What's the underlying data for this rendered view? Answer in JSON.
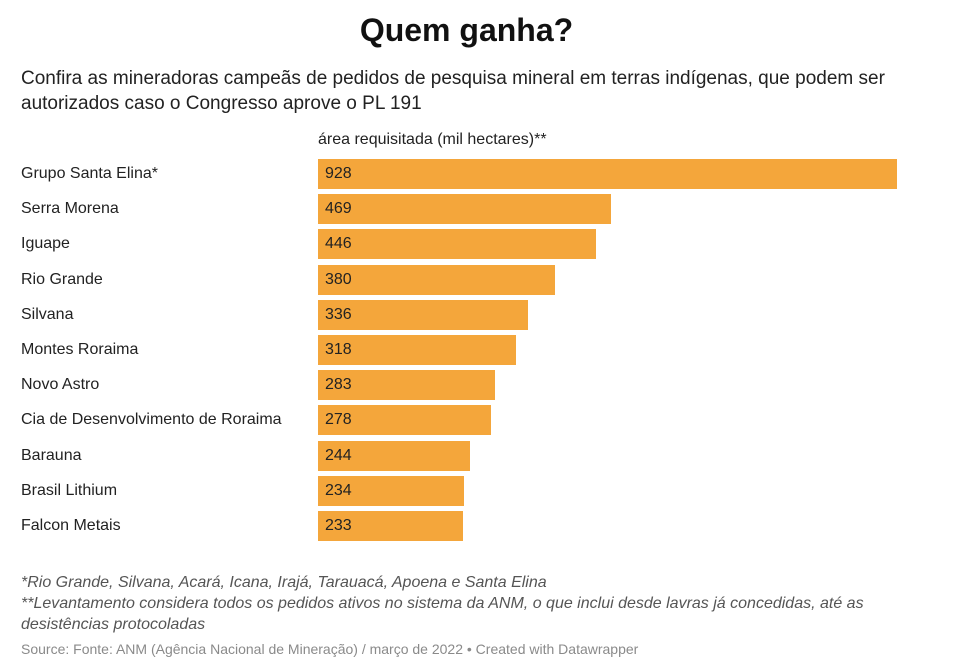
{
  "title": "Quem ganha?",
  "subtitle": "Confira as mineradoras campeãs de pedidos de pesquisa mineral em terras indígenas, que podem ser autorizados caso o Congresso aprove o PL 191",
  "chart_data": {
    "type": "bar",
    "orientation": "horizontal",
    "column_header": "área requisitada (mil hectares)**",
    "categories": [
      "Grupo Santa Elina*",
      "Serra Morena",
      "Iguape",
      "Rio Grande",
      "Silvana",
      "Montes Roraima",
      "Novo Astro",
      "Cia de Desenvolvimento de Roraima",
      "Barauna",
      "Brasil Lithium",
      "Falcon Metais"
    ],
    "values": [
      928,
      469,
      446,
      380,
      336,
      318,
      283,
      278,
      244,
      234,
      233
    ],
    "xlim": [
      0,
      928
    ],
    "data_labels": "inside-left",
    "grid": false,
    "legend": "none",
    "bar_color": "#f4a63b"
  },
  "notes": [
    "*Rio Grande, Silvana, Acará, Icana, Irajá, Tarauacá, Apoena e Santa Elina",
    "**Levantamento considera todos os pedidos ativos no sistema da ANM, o que inclui desde lavras já concedidas, até as desistências protocoladas"
  ],
  "source": "Source: Fonte: ANM (Agência Nacional de Mineração) / março de 2022 • Created with Datawrapper"
}
